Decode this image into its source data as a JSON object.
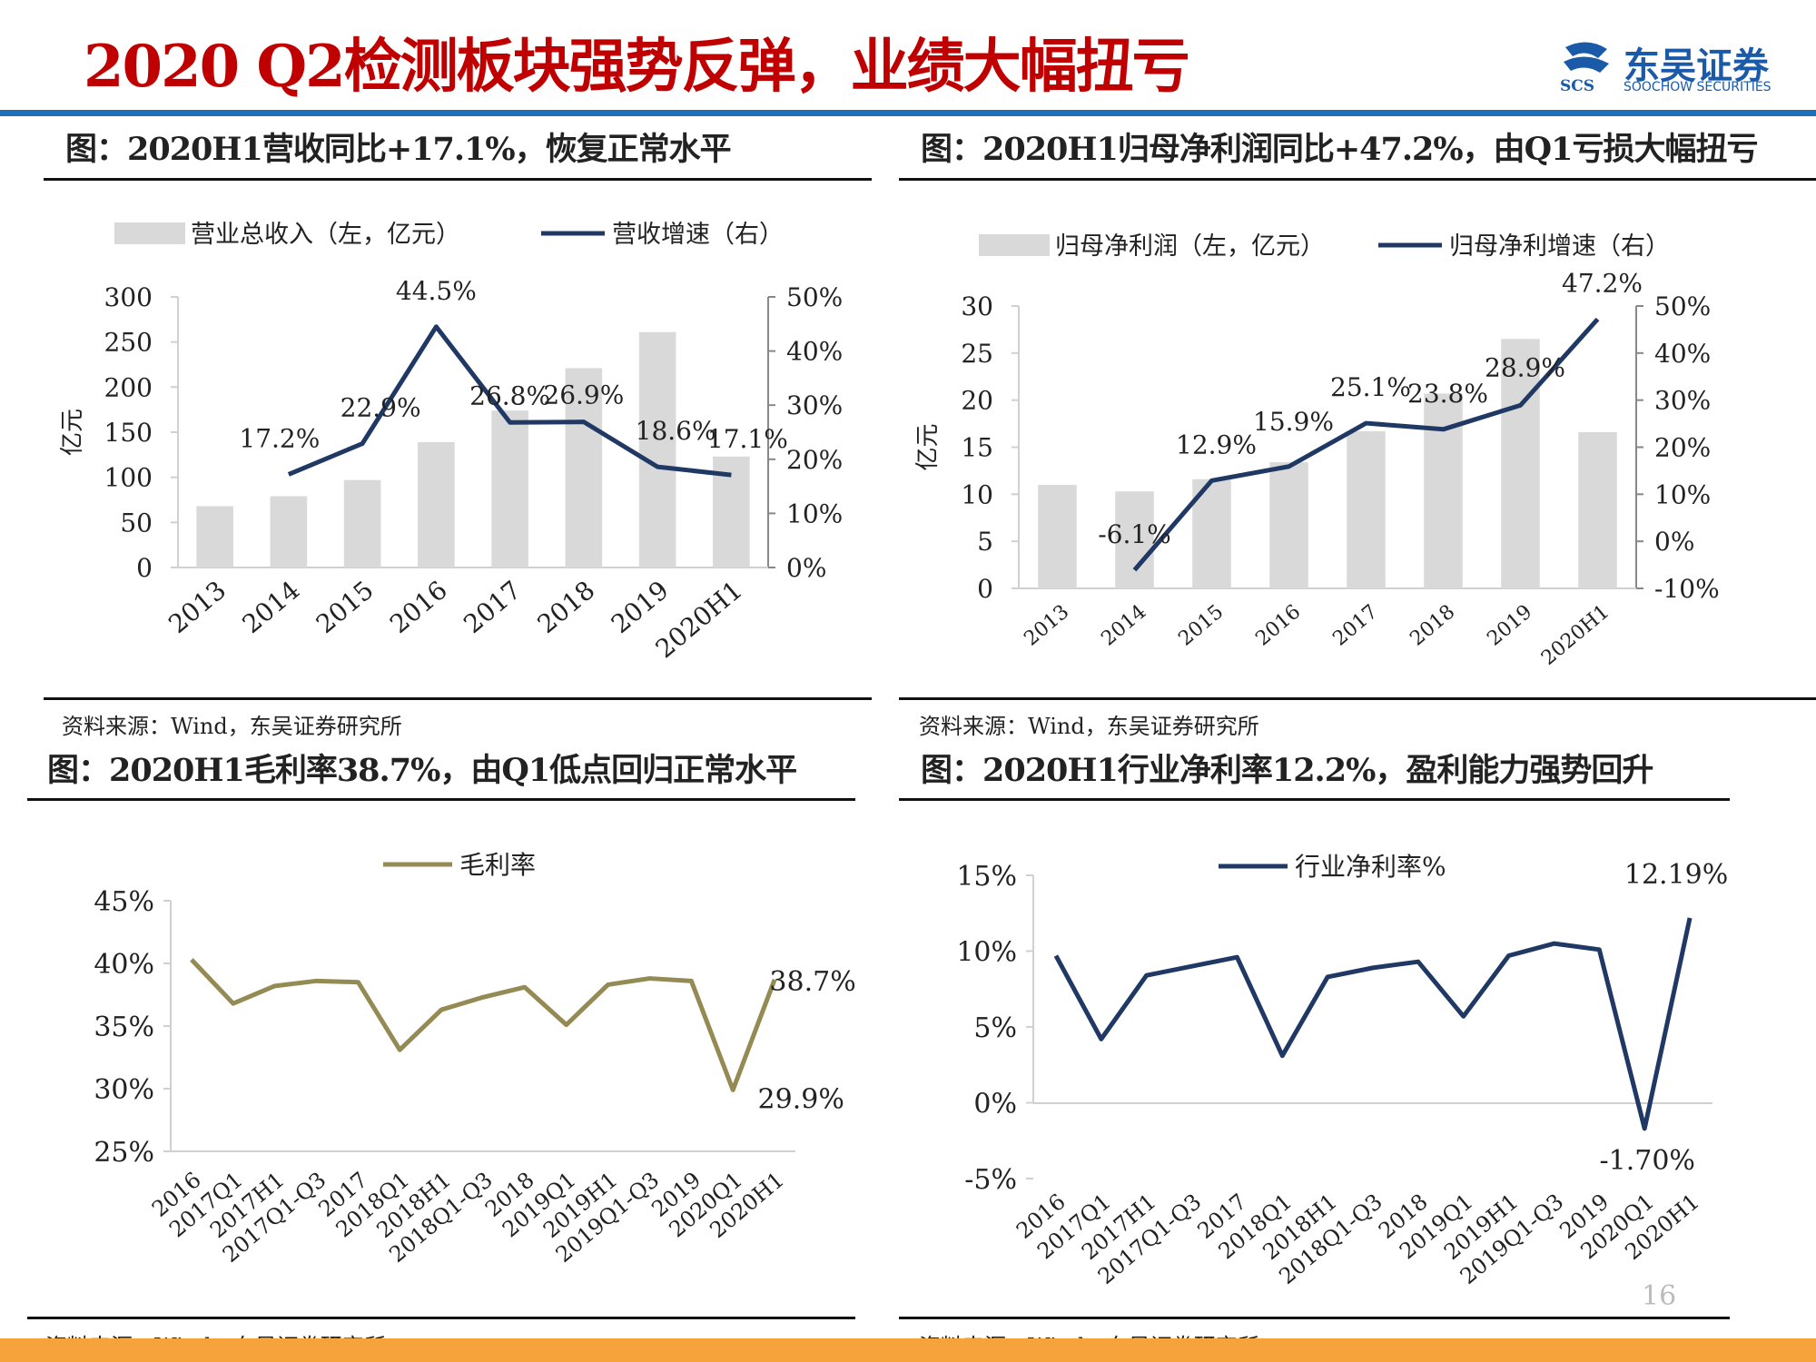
{
  "header": {
    "title": "2020 Q2检测板块强势反弹，业绩大幅扭亏",
    "logo_text": "东吴证券",
    "logo_sub": "SOOCHOW SECURITIES",
    "logo_mark": "SCS"
  },
  "page_number": "16",
  "panels": [
    {
      "title": "图：2020H1营收同比+17.1%，恢复正常水平",
      "source": "资料来源：Wind，东吴证券研究所"
    },
    {
      "title": "图：2020H1归母净利润同比+47.2%，由Q1亏损大幅扭亏",
      "source": "资料来源：Wind，东吴证券研究所"
    },
    {
      "title": "图：2020H1毛利率38.7%，由Q1低点回归正常水平",
      "source": "资料来源：Wind，东吴证券研究所"
    },
    {
      "title": "图：2020H1行业净利率12.2%，盈利能力强势回升",
      "source": "资料来源：Wind，东吴证券研究所"
    }
  ],
  "chart_data": [
    {
      "type": "bar",
      "categories": [
        "2013",
        "2014",
        "2015",
        "2016",
        "2017",
        "2018",
        "2019",
        "2020H1"
      ],
      "series": [
        {
          "name": "营业总收入（左，亿元）",
          "type": "bar",
          "axis": "left",
          "values": [
            68,
            79,
            97,
            139,
            174,
            221,
            261,
            123
          ]
        },
        {
          "name": "营收增速（右）",
          "type": "line",
          "axis": "right",
          "values": [
            null,
            17.2,
            22.9,
            44.5,
            26.8,
            26.9,
            18.6,
            17.1
          ],
          "labels": [
            "",
            "17.2%",
            "22.9%",
            "44.5%",
            "26.8%",
            "26.9%",
            "18.6%",
            "17.1%"
          ]
        }
      ],
      "ylabel": "亿元",
      "ylim": [
        0,
        300
      ],
      "yticks": [
        "0",
        "50",
        "100",
        "150",
        "200",
        "250",
        "300"
      ],
      "y2lim": [
        0,
        50
      ],
      "y2ticks": [
        "0%",
        "10%",
        "20%",
        "30%",
        "40%",
        "50%"
      ],
      "legend": "top",
      "colors": {
        "bar": "#d9d9d9",
        "line": "#1f3864"
      }
    },
    {
      "type": "bar",
      "categories": [
        "2013",
        "2014",
        "2015",
        "2016",
        "2017",
        "2018",
        "2019",
        "2020H1"
      ],
      "series": [
        {
          "name": "归母净利润（左，亿元）",
          "type": "bar",
          "axis": "left",
          "values": [
            11,
            10.3,
            11.6,
            13.4,
            16.7,
            20.7,
            26.5,
            16.6
          ]
        },
        {
          "name": "归母净利增速（右）",
          "type": "line",
          "axis": "right",
          "values": [
            null,
            -6.1,
            12.9,
            15.9,
            25.1,
            23.8,
            28.9,
            47.2
          ],
          "labels": [
            "",
            "-6.1%",
            "12.9%",
            "15.9%",
            "25.1%",
            "23.8%",
            "28.9%",
            "47.2%"
          ]
        }
      ],
      "ylabel": "亿元",
      "ylim": [
        0,
        30
      ],
      "yticks": [
        "0",
        "5",
        "10",
        "15",
        "20",
        "25",
        "30"
      ],
      "y2lim": [
        -10,
        50
      ],
      "y2ticks": [
        "-10%",
        "0%",
        "10%",
        "20%",
        "30%",
        "40%",
        "50%"
      ],
      "legend": "top",
      "colors": {
        "bar": "#d9d9d9",
        "line": "#1f3864"
      }
    },
    {
      "type": "line",
      "categories": [
        "2016",
        "2017Q1",
        "2017H1",
        "2017Q1-Q3",
        "2017",
        "2018Q1",
        "2018H1",
        "2018Q1-Q3",
        "2018",
        "2019Q1",
        "2019H1",
        "2019Q1-Q3",
        "2019",
        "2020Q1",
        "2020H1"
      ],
      "series": [
        {
          "name": "毛利率",
          "values": [
            40.3,
            36.8,
            38.2,
            38.6,
            38.5,
            33.1,
            36.3,
            37.3,
            38.1,
            35.1,
            38.3,
            38.8,
            38.6,
            29.9,
            38.7
          ],
          "labels": [
            "",
            "",
            "",
            "",
            "",
            "",
            "",
            "",
            "",
            "",
            "",
            "",
            "",
            "29.9%",
            "38.7%"
          ]
        }
      ],
      "ylim": [
        25,
        45
      ],
      "yticks": [
        "25%",
        "30%",
        "35%",
        "40%",
        "45%"
      ],
      "legend": "top",
      "colors": {
        "line": "#948a54"
      }
    },
    {
      "type": "line",
      "categories": [
        "2016",
        "2017Q1",
        "2017H1",
        "2017Q1-Q3",
        "2017",
        "2018Q1",
        "2018H1",
        "2018Q1-Q3",
        "2018",
        "2019Q1",
        "2019H1",
        "2019Q1-Q3",
        "2019",
        "2020Q1",
        "2020H1"
      ],
      "series": [
        {
          "name": "行业净利率%",
          "values": [
            9.7,
            4.2,
            8.4,
            9.0,
            9.6,
            3.1,
            8.3,
            8.9,
            9.3,
            5.7,
            9.7,
            10.5,
            10.1,
            -1.7,
            12.19
          ],
          "labels": [
            "",
            "",
            "",
            "",
            "",
            "",
            "",
            "",
            "",
            "",
            "",
            "",
            "",
            "-1.70%",
            "12.19%"
          ]
        }
      ],
      "ylim": [
        -5,
        15
      ],
      "yticks": [
        "-5%",
        "0%",
        "5%",
        "10%",
        "15%"
      ],
      "legend": "top",
      "colors": {
        "line": "#1f3864"
      }
    }
  ]
}
